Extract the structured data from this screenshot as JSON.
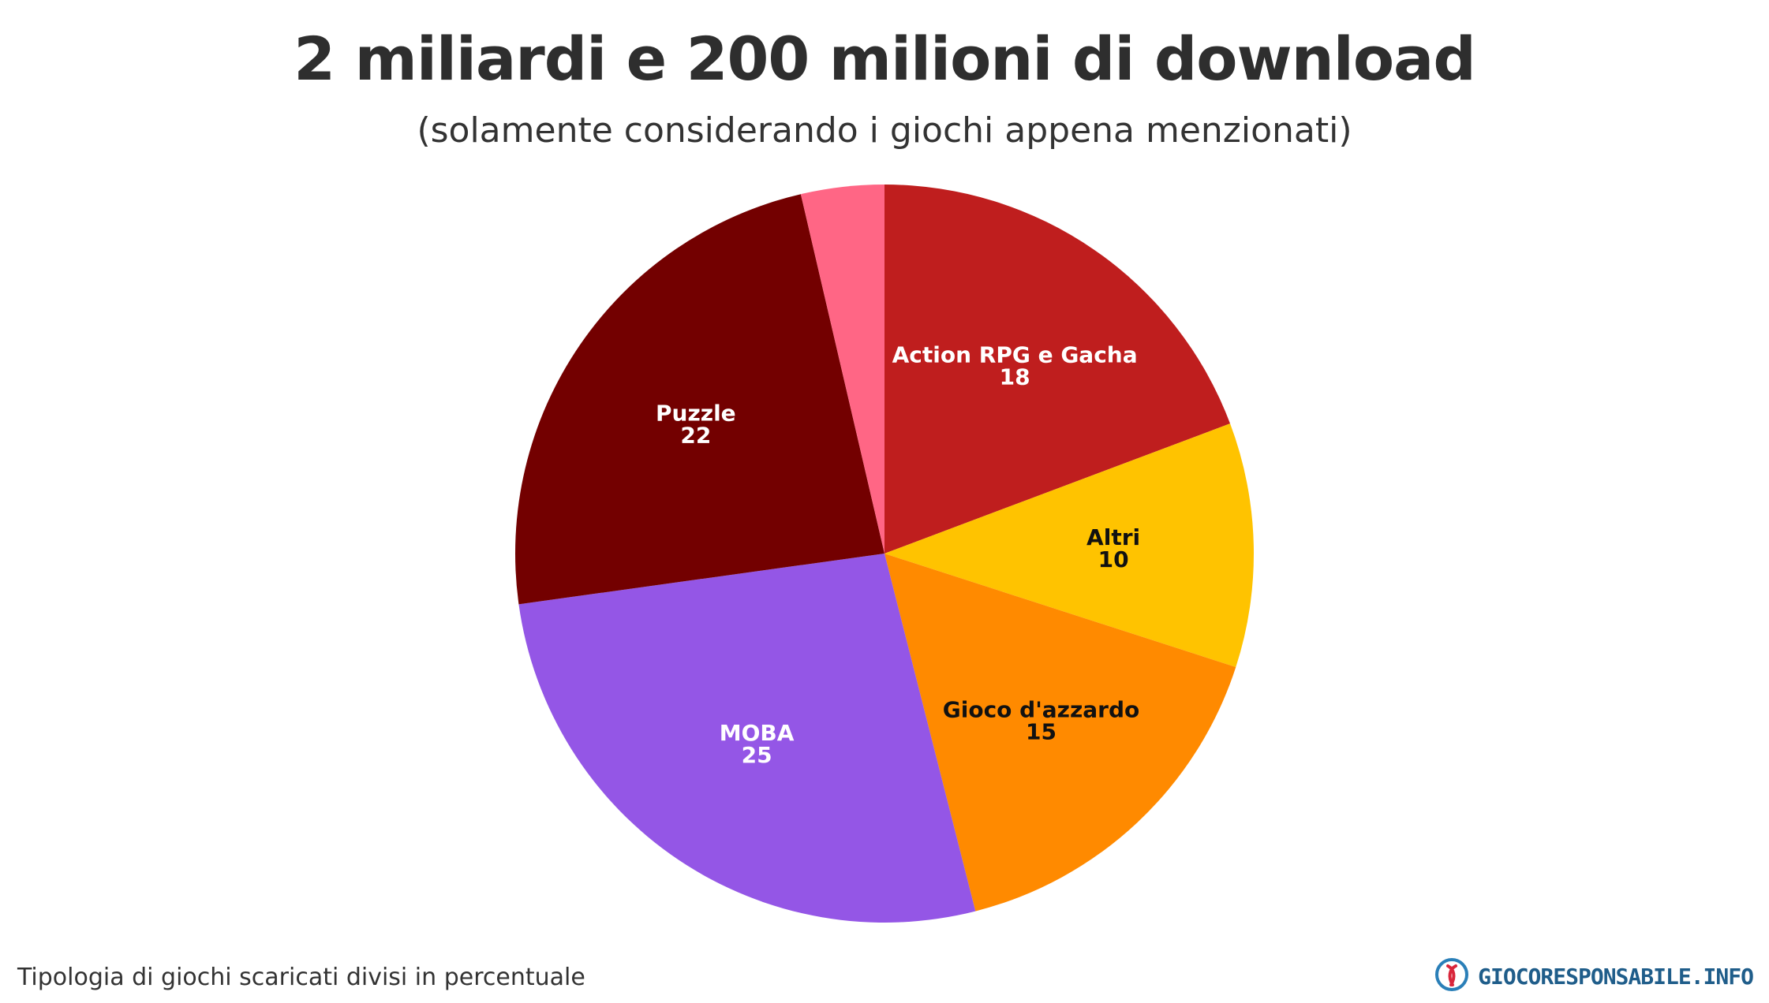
{
  "header": {
    "title": "2 miliardi e 200 milioni di download",
    "subtitle": "(solamente considerando i giochi appena menzionati)"
  },
  "footer": {
    "caption": "Tipologia di giochi scaricati divisi in percentuale",
    "brand": "GIOCORESPONSABILE.INFO",
    "brand_icon": "ribbon-logo-icon"
  },
  "chart_data": {
    "type": "pie",
    "title": "2 miliardi e 200 milioni di download",
    "subtitle": "(solamente considerando i giochi appena menzionati)",
    "start_angle_deg": 0,
    "direction": "clockwise",
    "legend": "none",
    "slices": [
      {
        "label": "Action RPG e Gacha",
        "value": 18,
        "color": "#bf1e1e",
        "label_color": "#ffffff",
        "labeled": true
      },
      {
        "label": "Altri",
        "value": 10,
        "color": "#ffc300",
        "label_color": "#111111",
        "labeled": true
      },
      {
        "label": "Gioco d'azzardo",
        "value": 15,
        "color": "#ff8a00",
        "label_color": "#111111",
        "labeled": true
      },
      {
        "label": "MOBA",
        "value": 25,
        "color": "#9456e6",
        "label_color": "#ffffff",
        "labeled": true
      },
      {
        "label": "Puzzle",
        "value": 22,
        "color": "#730000",
        "label_color": "#ffffff",
        "labeled": true
      },
      {
        "label": "",
        "value": 3.4,
        "color": "#ff6685",
        "label_color": "#ffffff",
        "labeled": false
      }
    ]
  }
}
